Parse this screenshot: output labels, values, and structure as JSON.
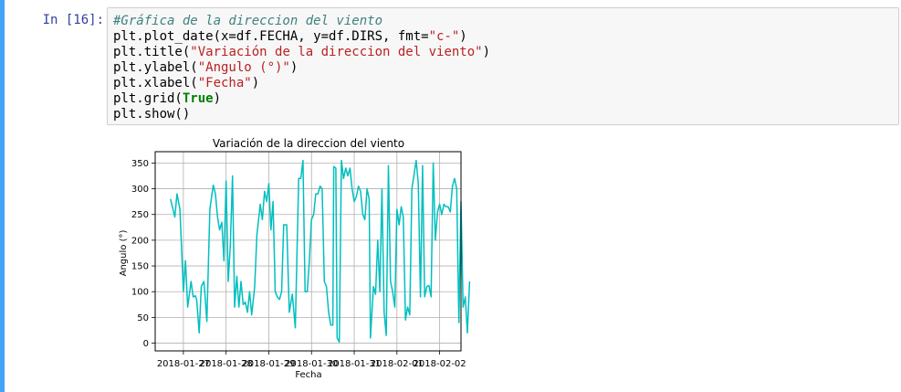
{
  "cell": {
    "prompt": "In [16]:",
    "code_lines": [
      [
        {
          "t": "#Gráfica de la direccion del viento",
          "c": "comment"
        }
      ],
      [
        {
          "t": "plt.plot_date(x=df.FECHA, y=df.DIRS, fmt=",
          "c": ""
        },
        {
          "t": "\"c-\"",
          "c": "str"
        },
        {
          "t": ")",
          "c": ""
        }
      ],
      [
        {
          "t": "plt.title(",
          "c": ""
        },
        {
          "t": "\"Variación de la direccion del viento\"",
          "c": "str"
        },
        {
          "t": ")",
          "c": ""
        }
      ],
      [
        {
          "t": "plt.ylabel(",
          "c": ""
        },
        {
          "t": "\"Angulo (°)\"",
          "c": "str"
        },
        {
          "t": ")",
          "c": ""
        }
      ],
      [
        {
          "t": "plt.xlabel(",
          "c": ""
        },
        {
          "t": "\"Fecha\"",
          "c": "str"
        },
        {
          "t": ")",
          "c": ""
        }
      ],
      [
        {
          "t": "plt.grid(",
          "c": ""
        },
        {
          "t": "True",
          "c": "kw"
        },
        {
          "t": ")",
          "c": ""
        }
      ],
      [
        {
          "t": "plt.show()",
          "c": ""
        }
      ]
    ]
  },
  "colors": {
    "series": "#00bfbf",
    "grid": "#b0b0b0",
    "accent_bar": "#42a5f5"
  },
  "chart_data": {
    "type": "line",
    "title": "Variación de la direccion del viento",
    "xlabel": "Fecha",
    "ylabel": "Angulo (°)",
    "ylim": [
      -15,
      372
    ],
    "y_ticks": [
      0,
      50,
      100,
      150,
      200,
      250,
      300,
      350
    ],
    "xlim": [
      -0.66,
      6.5
    ],
    "x_ticks": [
      0,
      1,
      2,
      3,
      4,
      5,
      6
    ],
    "x_tick_labels": [
      "2018-01-27",
      "2018-01-28",
      "2018-01-29",
      "2018-01-30",
      "2018-01-31",
      "2018-02-01",
      "2018-02-02"
    ],
    "grid": true,
    "series": [
      {
        "color": "#00bfbf",
        "points": [
          [
            -0.3,
            280
          ],
          [
            -0.2,
            245
          ],
          [
            -0.15,
            290
          ],
          [
            -0.08,
            260
          ],
          [
            0.0,
            100
          ],
          [
            0.05,
            160
          ],
          [
            0.1,
            70
          ],
          [
            0.18,
            120
          ],
          [
            0.23,
            90
          ],
          [
            0.28,
            92
          ],
          [
            0.31,
            85
          ],
          [
            0.37,
            20
          ],
          [
            0.42,
            110
          ],
          [
            0.48,
            120
          ],
          [
            0.5,
            100
          ],
          [
            0.55,
            42
          ],
          [
            0.62,
            260
          ],
          [
            0.7,
            307
          ],
          [
            0.75,
            290
          ],
          [
            0.8,
            245
          ],
          [
            0.85,
            220
          ],
          [
            0.9,
            235
          ],
          [
            0.95,
            160
          ],
          [
            1.0,
            315
          ],
          [
            1.05,
            120
          ],
          [
            1.1,
            190
          ],
          [
            1.15,
            325
          ],
          [
            1.2,
            70
          ],
          [
            1.25,
            130
          ],
          [
            1.3,
            70
          ],
          [
            1.35,
            120
          ],
          [
            1.4,
            75
          ],
          [
            1.45,
            80
          ],
          [
            1.5,
            60
          ],
          [
            1.55,
            100
          ],
          [
            1.6,
            55
          ],
          [
            1.67,
            110
          ],
          [
            1.72,
            210
          ],
          [
            1.8,
            270
          ],
          [
            1.85,
            240
          ],
          [
            1.9,
            295
          ],
          [
            1.95,
            275
          ],
          [
            2.0,
            310
          ],
          [
            2.05,
            220
          ],
          [
            2.1,
            275
          ],
          [
            2.15,
            100
          ],
          [
            2.2,
            90
          ],
          [
            2.25,
            85
          ],
          [
            2.3,
            100
          ],
          [
            2.35,
            230
          ],
          [
            2.42,
            230
          ],
          [
            2.48,
            60
          ],
          [
            2.55,
            95
          ],
          [
            2.62,
            30
          ],
          [
            2.7,
            320
          ],
          [
            2.75,
            320
          ],
          [
            2.8,
            355
          ],
          [
            2.85,
            100
          ],
          [
            2.9,
            100
          ],
          [
            2.95,
            160
          ],
          [
            3.0,
            240
          ],
          [
            3.05,
            250
          ],
          [
            3.1,
            290
          ],
          [
            3.15,
            290
          ],
          [
            3.2,
            305
          ],
          [
            3.25,
            300
          ],
          [
            3.3,
            120
          ],
          [
            3.35,
            110
          ],
          [
            3.4,
            60
          ],
          [
            3.45,
            35
          ],
          [
            3.5,
            35
          ],
          [
            3.52,
            343
          ],
          [
            3.57,
            340
          ],
          [
            3.6,
            10
          ],
          [
            3.65,
            2
          ],
          [
            3.7,
            355
          ],
          [
            3.75,
            320
          ],
          [
            3.8,
            340
          ],
          [
            3.85,
            325
          ],
          [
            3.9,
            340
          ],
          [
            3.95,
            300
          ],
          [
            4.0,
            275
          ],
          [
            4.05,
            285
          ],
          [
            4.1,
            305
          ],
          [
            4.15,
            295
          ],
          [
            4.2,
            250
          ],
          [
            4.25,
            240
          ],
          [
            4.3,
            300
          ],
          [
            4.35,
            280
          ],
          [
            4.38,
            10
          ],
          [
            4.45,
            110
          ],
          [
            4.5,
            95
          ],
          [
            4.55,
            200
          ],
          [
            4.6,
            100
          ],
          [
            4.65,
            300
          ],
          [
            4.7,
            60
          ],
          [
            4.75,
            15
          ],
          [
            4.8,
            345
          ],
          [
            4.85,
            120
          ],
          [
            4.9,
            100
          ],
          [
            4.95,
            70
          ],
          [
            5.0,
            260
          ],
          [
            5.05,
            230
          ],
          [
            5.1,
            265
          ],
          [
            5.15,
            245
          ],
          [
            5.2,
            45
          ],
          [
            5.25,
            70
          ],
          [
            5.3,
            55
          ],
          [
            5.35,
            300
          ],
          [
            5.45,
            355
          ],
          [
            5.5,
            310
          ],
          [
            5.55,
            90
          ],
          [
            5.6,
            345
          ],
          [
            5.65,
            90
          ],
          [
            5.7,
            110
          ],
          [
            5.75,
            112
          ],
          [
            5.8,
            90
          ],
          [
            5.85,
            350
          ],
          [
            5.9,
            200
          ],
          [
            5.95,
            255
          ],
          [
            6.0,
            270
          ],
          [
            6.05,
            250
          ],
          [
            6.1,
            270
          ],
          [
            6.15,
            265
          ],
          [
            6.2,
            265
          ],
          [
            6.25,
            255
          ],
          [
            6.3,
            305
          ],
          [
            6.35,
            320
          ],
          [
            6.4,
            300
          ],
          [
            6.45,
            40
          ],
          [
            6.5,
            275
          ],
          [
            6.55,
            70
          ],
          [
            6.6,
            90
          ],
          [
            6.65,
            20
          ],
          [
            6.7,
            120
          ]
        ]
      }
    ]
  }
}
